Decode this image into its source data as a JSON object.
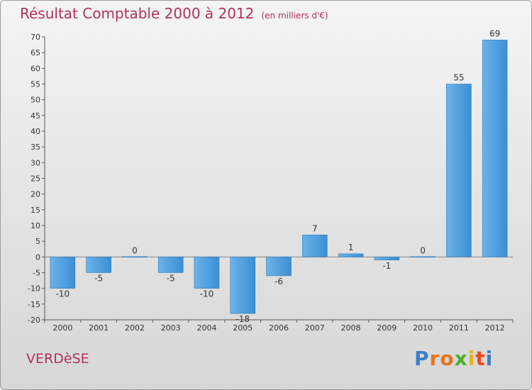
{
  "header": {
    "title": "Résultat Comptable 2000 à 2012",
    "subtitle": "(en milliers d'€)"
  },
  "footer": {
    "commune": "VERDèSE",
    "logo_letters": [
      {
        "ch": "P",
        "color": "#3a7fc4"
      },
      {
        "ch": "r",
        "color": "#e8731a"
      },
      {
        "ch": "o",
        "color": "#e8731a"
      },
      {
        "ch": "x",
        "color": "#4caf2a"
      },
      {
        "ch": "i",
        "color": "#e8b31a"
      },
      {
        "ch": "t",
        "color": "#e84a1a"
      },
      {
        "ch": "i",
        "color": "#3a7fc4"
      }
    ]
  },
  "chart_data": {
    "type": "bar",
    "categories": [
      "2000",
      "2001",
      "2002",
      "2003",
      "2004",
      "2005",
      "2006",
      "2007",
      "2008",
      "2009",
      "2010",
      "2011",
      "2012"
    ],
    "values": [
      -10,
      -5,
      0,
      -5,
      -10,
      -18,
      -6,
      7,
      1,
      -1,
      0,
      55,
      69
    ],
    "value_labels": [
      "-10",
      "-5",
      "0",
      "-5",
      "-10",
      "-18",
      "-6",
      "7",
      "1",
      "-1",
      "0",
      "55",
      "69"
    ],
    "title": "Résultat Comptable 2000 à 2012",
    "subtitle": "(en milliers d'€)",
    "xlabel": "",
    "ylabel": "",
    "ylim": [
      -20,
      70
    ],
    "ytick_step": 5,
    "grid": false,
    "bar_color": "#3d8fd3",
    "bar_color_light": "#6bb3ea"
  }
}
